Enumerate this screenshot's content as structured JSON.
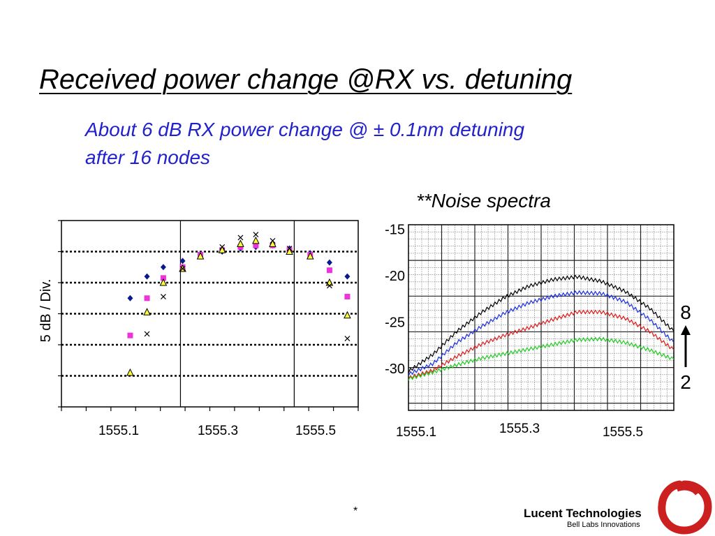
{
  "slide": {
    "title": "Received power change @RX vs. detuning",
    "subtitle_line1": "About 6 dB  RX power change @ ± 0.1nm detuning",
    "subtitle_line2": "after 16 nodes",
    "footer_mark": "*"
  },
  "brand": {
    "name": "Lucent Technologies",
    "tagline": "Bell Labs Innovations",
    "logo_color": "#cc1f1f",
    "logo_icon": "red-ring-logo-icon"
  },
  "chart_data": [
    {
      "type": "scatter",
      "title": "",
      "ylabel": "5 dB / Div.",
      "xlabel": "",
      "x_ticks": [
        "1555.1",
        "1555.3",
        "1555.5"
      ],
      "xlim": [
        1555.0,
        1555.6
      ],
      "ylim": [
        0,
        6
      ],
      "grid": "dotted horizontal every division",
      "series": [
        {
          "marker": "diamond",
          "color": "#0a1a8c",
          "points": [
            [
              1555.139,
              3.5
            ],
            [
              1555.173,
              4.2
            ],
            [
              1555.206,
              4.5
            ],
            [
              1555.245,
              4.7
            ],
            [
              1555.281,
              4.9
            ],
            [
              1555.325,
              5.0
            ],
            [
              1555.362,
              5.1
            ],
            [
              1555.393,
              5.15
            ],
            [
              1555.427,
              5.2
            ],
            [
              1555.461,
              5.1
            ],
            [
              1555.503,
              4.95
            ],
            [
              1555.542,
              4.65
            ],
            [
              1555.578,
              4.2
            ]
          ]
        },
        {
          "marker": "square",
          "color": "#ee33dd",
          "points": [
            [
              1555.139,
              2.3
            ],
            [
              1555.173,
              3.5
            ],
            [
              1555.206,
              4.15
            ],
            [
              1555.245,
              4.5
            ],
            [
              1555.281,
              4.9
            ],
            [
              1555.325,
              5.05
            ],
            [
              1555.362,
              5.15
            ],
            [
              1555.393,
              5.2
            ],
            [
              1555.427,
              5.2
            ],
            [
              1555.461,
              5.05
            ],
            [
              1555.503,
              4.9
            ],
            [
              1555.542,
              4.4
            ],
            [
              1555.578,
              3.55
            ]
          ]
        },
        {
          "marker": "triangle",
          "color": "#ffff33",
          "points": [
            [
              1555.139,
              1.1
            ],
            [
              1555.173,
              3.05
            ],
            [
              1555.206,
              4.0
            ],
            [
              1555.245,
              4.45
            ],
            [
              1555.281,
              4.85
            ],
            [
              1555.325,
              5.05
            ],
            [
              1555.362,
              5.25
            ],
            [
              1555.393,
              5.35
            ],
            [
              1555.427,
              5.25
            ],
            [
              1555.461,
              5.0
            ],
            [
              1555.503,
              4.85
            ],
            [
              1555.542,
              4.0
            ],
            [
              1555.578,
              2.95
            ]
          ]
        },
        {
          "marker": "x",
          "color": "#000000",
          "points": [
            [
              1555.173,
              2.35
            ],
            [
              1555.206,
              3.55
            ],
            [
              1555.245,
              4.45
            ],
            [
              1555.325,
              5.15
            ],
            [
              1555.362,
              5.45
            ],
            [
              1555.393,
              5.55
            ],
            [
              1555.427,
              5.35
            ],
            [
              1555.461,
              5.1
            ],
            [
              1555.542,
              3.9
            ],
            [
              1555.578,
              2.2
            ]
          ]
        }
      ]
    },
    {
      "type": "line",
      "title": "**Noise spectra",
      "xlabel": "",
      "ylabel": "",
      "x_ticks": [
        "1555.1",
        "1555.3",
        "1555.5"
      ],
      "y_ticks": [
        "-15",
        "-20",
        "-25",
        "-30"
      ],
      "xlim": [
        1555.05,
        1555.6
      ],
      "ylim": [
        -34.5,
        -14.5
      ],
      "grid": "fine grid",
      "annotation_top": "8",
      "annotation_bottom": "2",
      "annotation_icon": "up-arrow-icon",
      "series": [
        {
          "color": "#000000",
          "points": [
            [
              1555.05,
              -30.3
            ],
            [
              1555.1,
              -28.5
            ],
            [
              1555.15,
              -26
            ],
            [
              1555.2,
              -24
            ],
            [
              1555.25,
              -22.3
            ],
            [
              1555.3,
              -21.1
            ],
            [
              1555.35,
              -20.4
            ],
            [
              1555.4,
              -20.1
            ],
            [
              1555.45,
              -20.6
            ],
            [
              1555.5,
              -21.7
            ],
            [
              1555.55,
              -23.5
            ],
            [
              1555.6,
              -26.0
            ]
          ]
        },
        {
          "color": "#1a2ee6",
          "points": [
            [
              1555.05,
              -30.6
            ],
            [
              1555.1,
              -29.5
            ],
            [
              1555.15,
              -27.2
            ],
            [
              1555.2,
              -25.5
            ],
            [
              1555.25,
              -24
            ],
            [
              1555.3,
              -22.9
            ],
            [
              1555.35,
              -22.2
            ],
            [
              1555.4,
              -21.8
            ],
            [
              1555.45,
              -21.9
            ],
            [
              1555.5,
              -22.8
            ],
            [
              1555.55,
              -24.7
            ],
            [
              1555.6,
              -27.2
            ]
          ]
        },
        {
          "color": "#e01a1a",
          "points": [
            [
              1555.05,
              -31.0
            ],
            [
              1555.1,
              -30.2
            ],
            [
              1555.15,
              -28.7
            ],
            [
              1555.2,
              -27.4
            ],
            [
              1555.25,
              -26.4
            ],
            [
              1555.3,
              -25.6
            ],
            [
              1555.35,
              -24.7
            ],
            [
              1555.4,
              -23.9
            ],
            [
              1555.45,
              -23.9
            ],
            [
              1555.5,
              -24.6
            ],
            [
              1555.55,
              -26.0
            ],
            [
              1555.6,
              -28.0
            ]
          ]
        },
        {
          "color": "#22cc22",
          "points": [
            [
              1555.05,
              -31.1
            ],
            [
              1555.1,
              -30.4
            ],
            [
              1555.15,
              -29.6
            ],
            [
              1555.2,
              -28.9
            ],
            [
              1555.25,
              -28.4
            ],
            [
              1555.3,
              -27.9
            ],
            [
              1555.35,
              -27.4
            ],
            [
              1555.4,
              -26.9
            ],
            [
              1555.45,
              -26.8
            ],
            [
              1555.5,
              -27.2
            ],
            [
              1555.55,
              -28.0
            ],
            [
              1555.6,
              -29.0
            ]
          ]
        }
      ]
    }
  ]
}
